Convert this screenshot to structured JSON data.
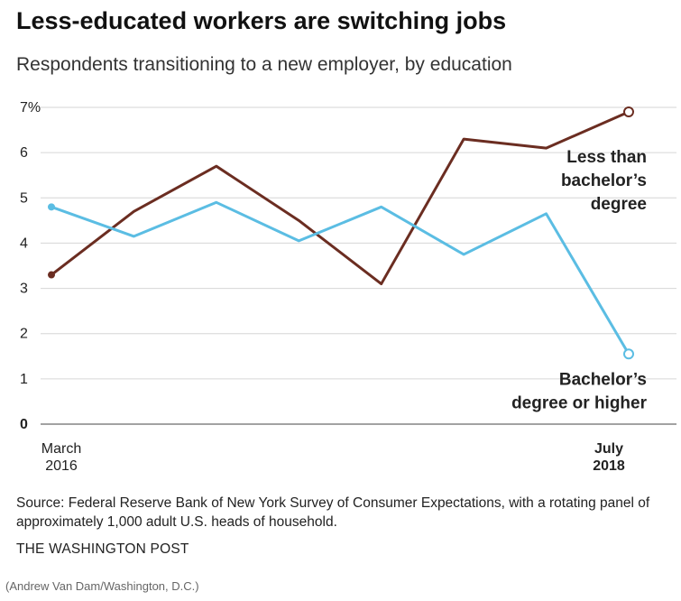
{
  "title": "Less-educated workers are switching jobs",
  "subtitle": "Respondents transitioning to a new employer, by education",
  "source": "Source: Federal Reserve Bank of New York Survey of Consumer Expectations, with a rotating panel of approximately 1,000 adult U.S. heads of household.",
  "publisher": "THE WASHINGTON POST",
  "credit": "(Andrew Van Dam/Washington, D.C.)",
  "chart_data": {
    "type": "line",
    "title": "Less-educated workers are switching jobs",
    "subtitle": "Respondents transitioning to a new employer, by education",
    "xlabel": "",
    "ylabel": "",
    "ylim": [
      0,
      7
    ],
    "grid": true,
    "y_ticks": [
      {
        "value": 7,
        "label": "7%"
      },
      {
        "value": 6,
        "label": "6"
      },
      {
        "value": 5,
        "label": "5"
      },
      {
        "value": 4,
        "label": "4"
      },
      {
        "value": 3,
        "label": "3"
      },
      {
        "value": 2,
        "label": "2"
      },
      {
        "value": 1,
        "label": "1"
      },
      {
        "value": 0,
        "label": "0"
      }
    ],
    "x_start_label": [
      "March",
      "2016"
    ],
    "x_end_label": [
      "July",
      "2018"
    ],
    "x": [
      0,
      1,
      2,
      3,
      4,
      5,
      6,
      7
    ],
    "series": [
      {
        "name": "Less than bachelor's degree",
        "label_lines": [
          "Less than",
          "bachelor’s",
          "degree"
        ],
        "color": "#6b2d21",
        "values": [
          3.3,
          4.7,
          5.7,
          4.5,
          3.1,
          6.3,
          6.1,
          6.9
        ]
      },
      {
        "name": "Bachelor's degree or higher",
        "label_lines": [
          "Bachelor’s",
          "degree or higher"
        ],
        "color": "#5bbde3",
        "values": [
          4.8,
          4.15,
          4.9,
          4.05,
          4.8,
          3.75,
          4.65,
          1.55
        ]
      }
    ]
  }
}
